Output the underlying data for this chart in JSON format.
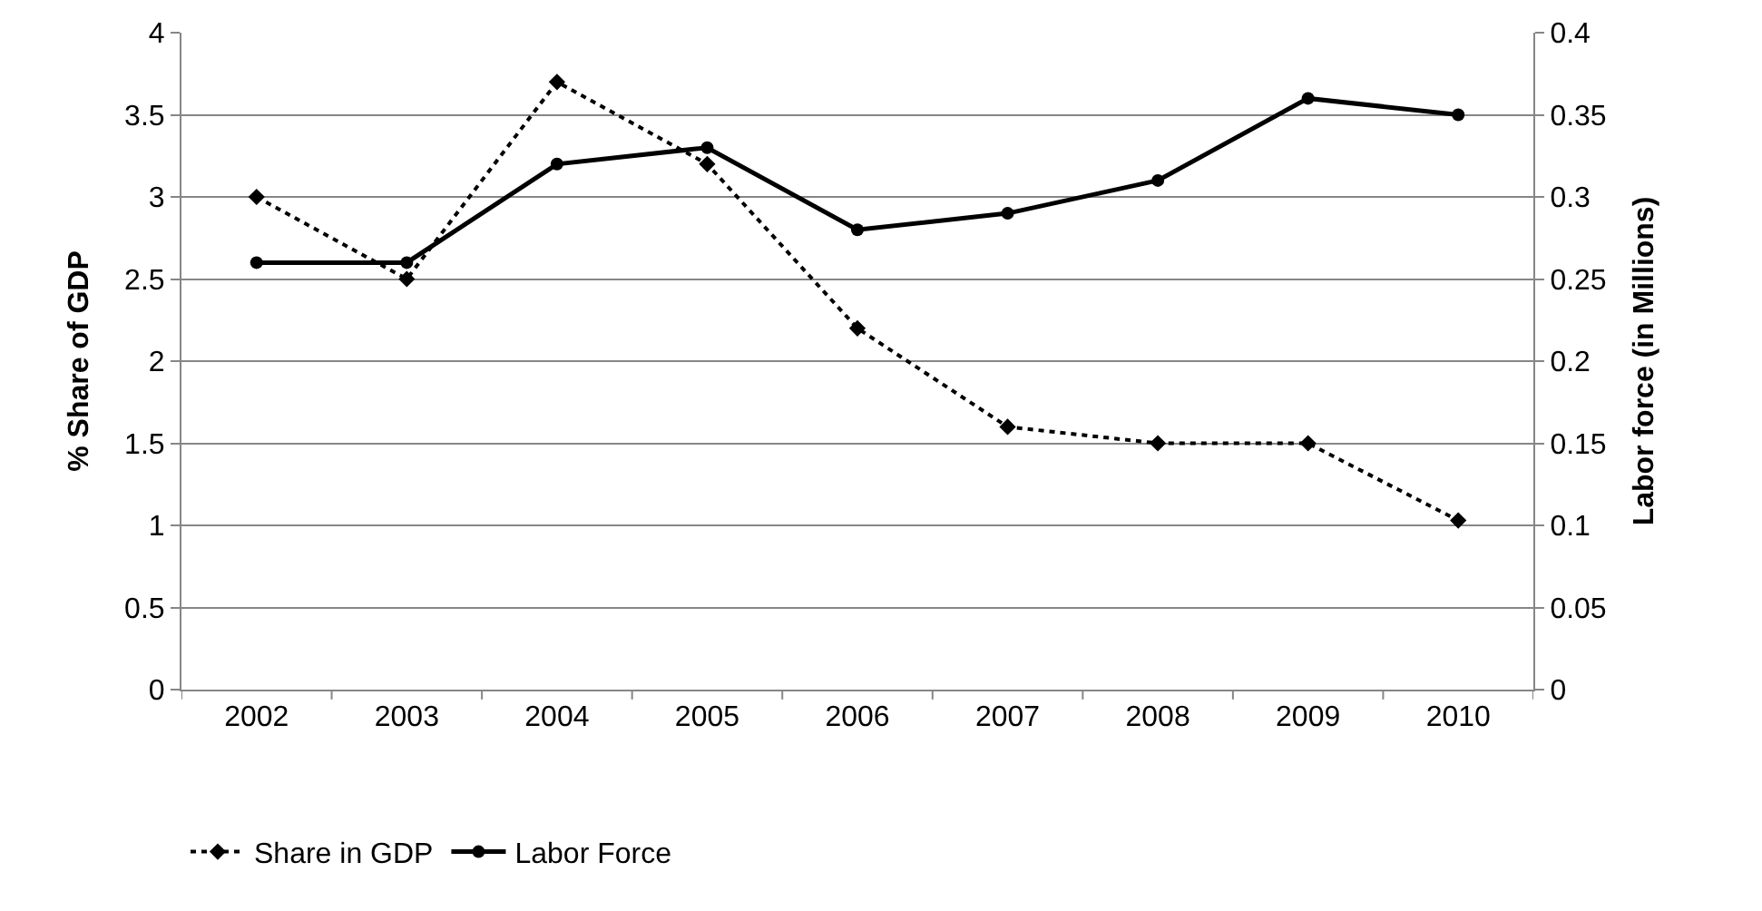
{
  "chart_data": {
    "type": "line",
    "ylabel": "% Share of GDP",
    "y2label": "Labor force (in Millions)",
    "categories": [
      "2002",
      "2003",
      "2004",
      "2005",
      "2006",
      "2007",
      "2008",
      "2009",
      "2010"
    ],
    "series": [
      {
        "name": "Share in GDP",
        "color": "#000000",
        "values": [
          3.0,
          2.5,
          3.7,
          3.2,
          2.2,
          1.6,
          1.5,
          1.5,
          1.03
        ],
        "marker": "diamond",
        "line_style": "dotted"
      },
      {
        "name": "Labor Force",
        "color": "#000000",
        "values": [
          0.26,
          0.26,
          0.32,
          0.33,
          0.28,
          0.29,
          0.31,
          0.36,
          0.35
        ],
        "axis": "y2",
        "marker": "circle",
        "line_style": "solid"
      }
    ],
    "ylim": [
      0,
      4
    ],
    "yticks": [
      0,
      0.5,
      1,
      1.5,
      2,
      2.5,
      3,
      3.5,
      4
    ],
    "y2lim": [
      0,
      0.4
    ],
    "y2ticks": [
      0,
      0.05,
      0.1,
      0.15,
      0.2,
      0.25,
      0.3,
      0.35,
      0.4
    ],
    "grid": "y",
    "legend": "bottom"
  }
}
